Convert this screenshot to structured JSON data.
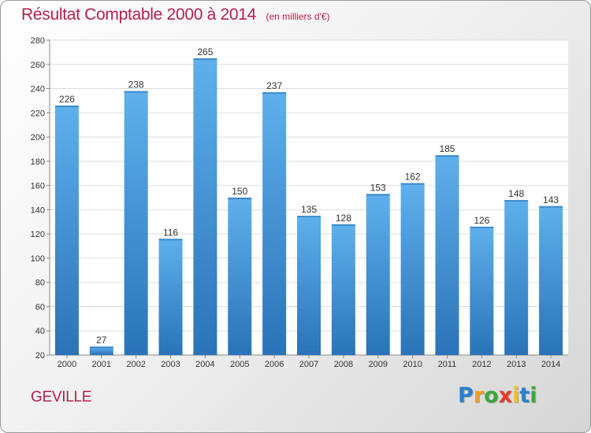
{
  "chart_data": {
    "type": "bar",
    "title": "Résultat Comptable 2000 à 2014",
    "subtitle": "(en milliers d'€)",
    "categories": [
      "2000",
      "2001",
      "2002",
      "2003",
      "2004",
      "2005",
      "2006",
      "2007",
      "2008",
      "2009",
      "2010",
      "2011",
      "2012",
      "2013",
      "2014"
    ],
    "values": [
      226,
      27,
      238,
      116,
      265,
      150,
      237,
      135,
      128,
      153,
      162,
      185,
      126,
      148,
      143
    ],
    "ylim": [
      20,
      280
    ],
    "yticks": [
      20,
      40,
      60,
      80,
      100,
      120,
      140,
      160,
      180,
      200,
      220,
      240,
      260,
      280
    ],
    "grid": true,
    "bar_color": "#3d8fd6",
    "bar_color_light": "#5fb0ec",
    "bar_color_dark": "#2a73b8"
  },
  "commune": "GEVILLE",
  "logo": {
    "letters": [
      "P",
      "r",
      "o",
      "x",
      "i",
      "t",
      "i"
    ],
    "colors": [
      "#2a7fd0",
      "#f0a020",
      "#3aa83a",
      "#e83a2a",
      "#f0c020",
      "#2a7fd0",
      "#3aa83a"
    ]
  },
  "colors": {
    "title": "#b5204a",
    "grid": "#dddddd",
    "plot_bg": "#ffffff"
  }
}
